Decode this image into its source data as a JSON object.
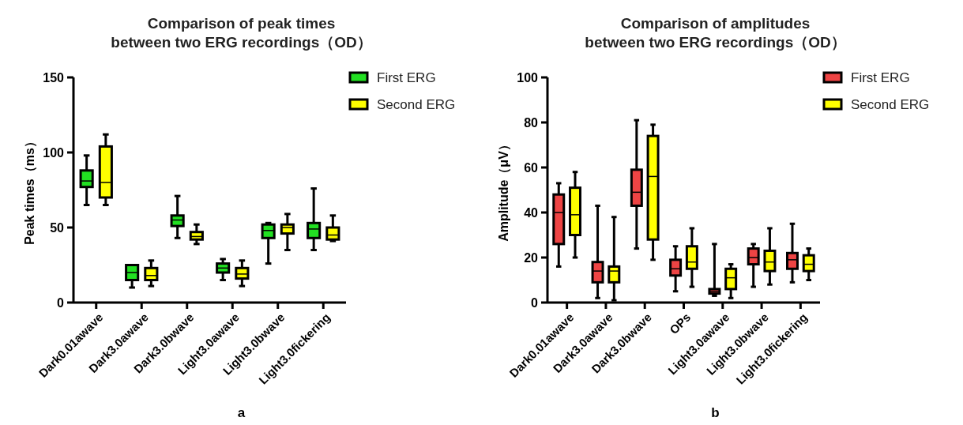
{
  "chart_data": [
    {
      "type": "box",
      "title": "Comparison of peak times\nbetween two ERG recordings（OD）",
      "ylabel": "Peak times（ms）",
      "categories": [
        "Dark0.01awave",
        "Dark3.0awave",
        "Dark3.0bwave",
        "Light3.0awave",
        "Light3.0bwave",
        "Light3.0fickering"
      ],
      "ylim": [
        0,
        150
      ],
      "yticks": [
        0,
        50,
        100,
        150
      ],
      "legend": "top right",
      "annotations": [
        "a"
      ],
      "series": [
        {
          "name": "First ERG",
          "color": "#22e022",
          "boxes": [
            {
              "low": 65,
              "q1": 77,
              "median": 81,
              "q3": 88,
              "high": 98
            },
            {
              "low": 10,
              "q1": 15,
              "median": 20,
              "q3": 25,
              "high": 25
            },
            {
              "low": 43,
              "q1": 51,
              "median": 55,
              "q3": 58,
              "high": 71
            },
            {
              "low": 15,
              "q1": 20,
              "median": 23,
              "q3": 26,
              "high": 29
            },
            {
              "low": 26,
              "q1": 43,
              "median": 48,
              "q3": 52,
              "high": 53
            },
            {
              "low": 35,
              "q1": 43,
              "median": 49,
              "q3": 53,
              "high": 76
            }
          ]
        },
        {
          "name": "Second ERG",
          "color": "#ffff00",
          "boxes": [
            {
              "low": 65,
              "q1": 70,
              "median": 80,
              "q3": 104,
              "high": 112
            },
            {
              "low": 11,
              "q1": 15,
              "median": 18,
              "q3": 23,
              "high": 28
            },
            {
              "low": 39,
              "q1": 42,
              "median": 44,
              "q3": 47,
              "high": 52
            },
            {
              "low": 11,
              "q1": 16,
              "median": 19,
              "q3": 23,
              "high": 28
            },
            {
              "low": 35,
              "q1": 46,
              "median": 50,
              "q3": 52,
              "high": 59
            },
            {
              "low": 41,
              "q1": 42,
              "median": 45,
              "q3": 50,
              "high": 58
            }
          ]
        }
      ]
    },
    {
      "type": "box",
      "title": "Comparison of amplitudes\nbetween two ERG recordings（OD）",
      "ylabel": "Amplitude（μV）",
      "categories": [
        "Dark0.01awave",
        "Dark3.0awave",
        "Dark3.0bwave",
        "OPs",
        "Light3.0awave",
        "Light3.0bwave",
        "Light3.0fickering"
      ],
      "ylim": [
        0,
        100
      ],
      "yticks": [
        0,
        20,
        40,
        60,
        80,
        100
      ],
      "legend": "top right",
      "annotations": [
        "b"
      ],
      "series": [
        {
          "name": "First ERG",
          "color": "#ee4444",
          "boxes": [
            {
              "low": 16,
              "q1": 26,
              "median": 40,
              "q3": 48,
              "high": 53
            },
            {
              "low": 2,
              "q1": 9,
              "median": 14,
              "q3": 18,
              "high": 43
            },
            {
              "low": 24,
              "q1": 43,
              "median": 49,
              "q3": 59,
              "high": 81
            },
            {
              "low": 5,
              "q1": 12,
              "median": 15,
              "q3": 19,
              "high": 25
            },
            {
              "low": 3,
              "q1": 4,
              "median": 5,
              "q3": 6,
              "high": 26
            },
            {
              "low": 7,
              "q1": 17,
              "median": 20,
              "q3": 24,
              "high": 26
            },
            {
              "low": 9,
              "q1": 15,
              "median": 19,
              "q3": 22,
              "high": 35
            }
          ]
        },
        {
          "name": "Second ERG",
          "color": "#ffff00",
          "boxes": [
            {
              "low": 20,
              "q1": 30,
              "median": 39,
              "q3": 51,
              "high": 58
            },
            {
              "low": 1,
              "q1": 9,
              "median": 14,
              "q3": 16,
              "high": 38
            },
            {
              "low": 19,
              "q1": 28,
              "median": 56,
              "q3": 74,
              "high": 79
            },
            {
              "low": 7,
              "q1": 15,
              "median": 18,
              "q3": 25,
              "high": 33
            },
            {
              "low": 2,
              "q1": 6,
              "median": 11,
              "q3": 15,
              "high": 17
            },
            {
              "low": 8,
              "q1": 14,
              "median": 18,
              "q3": 23,
              "high": 33
            },
            {
              "low": 10,
              "q1": 14,
              "median": 17,
              "q3": 21,
              "high": 24
            }
          ]
        }
      ]
    }
  ]
}
